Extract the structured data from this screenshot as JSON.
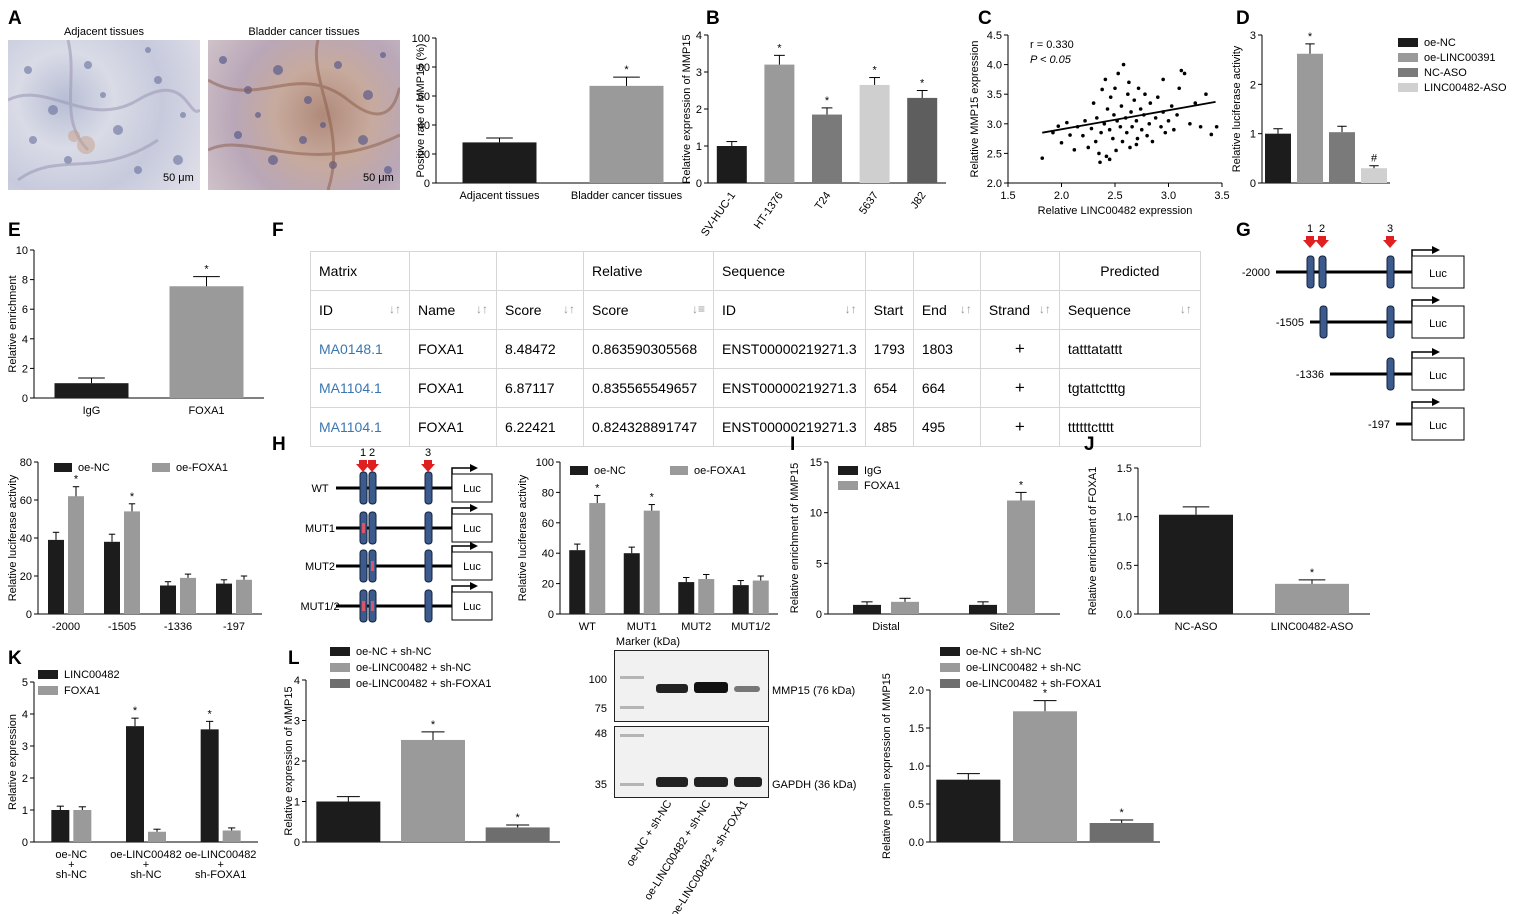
{
  "panel_labels": [
    "A",
    "B",
    "C",
    "D",
    "E",
    "F",
    "G",
    "H",
    "I",
    "J",
    "K",
    "L"
  ],
  "panelA": {
    "image_titles": [
      "Adjacent tissues",
      "Bladder cancer tissues"
    ],
    "scale_bar": "50 μm"
  },
  "panelF": {
    "header1": [
      "Matrix",
      "",
      "",
      "Relative",
      "Sequence",
      "",
      "",
      "",
      "Predicted"
    ],
    "header2": [
      "ID",
      "Name",
      "Score",
      "Score",
      "ID",
      "Start",
      "End",
      "Strand",
      "Sequence"
    ],
    "rows": [
      [
        "MA0148.1",
        "FOXA1",
        "8.48472",
        "0.863590305568",
        "ENST00000219271.3",
        "1793",
        "1803",
        "+",
        "tatttatattt"
      ],
      [
        "MA1104.1",
        "FOXA1",
        "6.87117",
        "0.835565549657",
        "ENST00000219271.3",
        "654",
        "664",
        "+",
        "tgtattctttg"
      ],
      [
        "MA1104.1",
        "FOXA1",
        "6.22421",
        "0.824328891747",
        "ENST00000219271.3",
        "485",
        "495",
        "+",
        "ttttttctttt"
      ]
    ]
  },
  "panelG": {
    "site_numbers": [
      "1",
      "2",
      "3"
    ],
    "constructs": [
      "-2000",
      "-1505",
      "-1336",
      "-197"
    ],
    "reporter": "Luc"
  },
  "panelH_diagram": {
    "site_numbers": [
      "1",
      "2",
      "3"
    ],
    "constructs": [
      "WT",
      "MUT1",
      "MUT2",
      "MUT1/2"
    ],
    "reporter": "Luc"
  },
  "westernL": {
    "marker_title": "Marker (kDa)",
    "upper_markers": [
      "100",
      "75"
    ],
    "lower_markers": [
      "48",
      "35"
    ],
    "bands": [
      "MMP15 (76 kDa)",
      "GAPDH (36 kDa)"
    ],
    "lanes": [
      "oe-NC + sh-NC",
      "oe-LINC00482 + sh-NC",
      "oe-LINC00482 + sh-FOXA1"
    ]
  },
  "chart_data": [
    {
      "panel": "A",
      "type": "bar",
      "categories": [
        "Adjacent tissues",
        "Bladder cancer tissues"
      ],
      "values": [
        28,
        67
      ],
      "errors": [
        3,
        6
      ],
      "ylabel": "Positive rate of MMP15 (%)",
      "ylim": [
        0,
        100
      ],
      "yticks": [
        0,
        20,
        40,
        60,
        80,
        100
      ],
      "significance": [
        "",
        "*"
      ],
      "colors": [
        "#1c1c1c",
        "#9a9a9a"
      ]
    },
    {
      "panel": "B",
      "type": "bar",
      "categories": [
        "SV-HUC-1",
        "HT-1376",
        "T24",
        "5637",
        "J82"
      ],
      "values": [
        1.0,
        3.2,
        1.85,
        2.65,
        2.3
      ],
      "errors": [
        0.12,
        0.25,
        0.18,
        0.2,
        0.2
      ],
      "ylabel": "Relative expression of MMP15",
      "ylim": [
        0,
        4
      ],
      "yticks": [
        0,
        1,
        2,
        3,
        4
      ],
      "significance": [
        "",
        "*",
        "*",
        "*",
        "*"
      ],
      "colors": [
        "#1c1c1c",
        "#9a9a9a",
        "#7a7a7a",
        "#cfcfcf",
        "#5e5e5e"
      ]
    },
    {
      "panel": "C",
      "type": "scatter",
      "xlabel": "Relative LINC00482 expression",
      "ylabel": "Relative MMP15 expression",
      "xlim": [
        1.5,
        3.5
      ],
      "ylim": [
        2.0,
        4.5
      ],
      "xticks": [
        1.5,
        2.0,
        2.5,
        3.0,
        3.5
      ],
      "yticks": [
        2.0,
        2.5,
        3.0,
        3.5,
        4.0,
        4.5
      ],
      "annotations": [
        "r = 0.330",
        "P < 0.05"
      ],
      "regression": [
        [
          1.82,
          2.85
        ],
        [
          3.44,
          3.37
        ]
      ],
      "points": [
        [
          1.82,
          2.42
        ],
        [
          1.92,
          2.85
        ],
        [
          1.97,
          2.96
        ],
        [
          2.0,
          2.68
        ],
        [
          2.05,
          3.02
        ],
        [
          2.08,
          2.81
        ],
        [
          2.12,
          2.56
        ],
        [
          2.15,
          2.95
        ],
        [
          2.2,
          2.8
        ],
        [
          2.22,
          3.05
        ],
        [
          2.25,
          2.6
        ],
        [
          2.28,
          2.92
        ],
        [
          2.3,
          3.35
        ],
        [
          2.32,
          2.7
        ],
        [
          2.33,
          3.1
        ],
        [
          2.35,
          2.5
        ],
        [
          2.37,
          2.85
        ],
        [
          2.38,
          3.58
        ],
        [
          2.4,
          3.0
        ],
        [
          2.41,
          3.75
        ],
        [
          2.42,
          2.45
        ],
        [
          2.43,
          3.25
        ],
        [
          2.45,
          2.9
        ],
        [
          2.46,
          3.45
        ],
        [
          2.48,
          2.75
        ],
        [
          2.49,
          3.15
        ],
        [
          2.5,
          3.6
        ],
        [
          2.51,
          2.55
        ],
        [
          2.52,
          3.05
        ],
        [
          2.53,
          3.85
        ],
        [
          2.55,
          2.95
        ],
        [
          2.56,
          3.3
        ],
        [
          2.57,
          2.7
        ],
        [
          2.58,
          4.0
        ],
        [
          2.6,
          3.1
        ],
        [
          2.61,
          2.85
        ],
        [
          2.62,
          3.5
        ],
        [
          2.63,
          3.7
        ],
        [
          2.64,
          2.6
        ],
        [
          2.65,
          3.2
        ],
        [
          2.66,
          2.95
        ],
        [
          2.68,
          3.4
        ],
        [
          2.7,
          3.05
        ],
        [
          2.71,
          2.75
        ],
        [
          2.72,
          3.6
        ],
        [
          2.74,
          3.25
        ],
        [
          2.75,
          2.9
        ],
        [
          2.77,
          3.15
        ],
        [
          2.78,
          3.5
        ],
        [
          2.8,
          2.8
        ],
        [
          2.82,
          3.0
        ],
        [
          2.83,
          3.35
        ],
        [
          2.85,
          2.7
        ],
        [
          2.88,
          3.1
        ],
        [
          2.9,
          3.45
        ],
        [
          2.93,
          2.95
        ],
        [
          2.95,
          3.2
        ],
        [
          2.97,
          2.85
        ],
        [
          3.0,
          3.05
        ],
        [
          3.03,
          3.3
        ],
        [
          3.05,
          2.9
        ],
        [
          3.08,
          3.15
        ],
        [
          3.1,
          3.6
        ],
        [
          3.15,
          3.85
        ],
        [
          3.2,
          3.0
        ],
        [
          3.25,
          3.35
        ],
        [
          3.3,
          2.95
        ],
        [
          3.35,
          3.5
        ],
        [
          3.4,
          2.82
        ],
        [
          3.45,
          2.95
        ],
        [
          2.36,
          2.35
        ],
        [
          2.7,
          2.65
        ],
        [
          2.95,
          3.75
        ],
        [
          2.45,
          2.4
        ],
        [
          3.12,
          3.9
        ]
      ]
    },
    {
      "panel": "D",
      "type": "bar",
      "categories": [
        "oe-NC",
        "oe-LINC00391",
        "NC-ASO",
        "LINC00482-ASO"
      ],
      "values": [
        1.0,
        2.62,
        1.03,
        0.3
      ],
      "errors": [
        0.1,
        0.2,
        0.12,
        0.05
      ],
      "ylabel": "Relative luciferase activity",
      "ylim": [
        0,
        3
      ],
      "yticks": [
        0,
        1,
        2,
        3
      ],
      "significance": [
        "",
        "*",
        "",
        "#"
      ],
      "legend": [
        "oe-NC",
        "oe-LINC00391",
        "NC-ASO",
        "LINC00482-ASO"
      ],
      "colors": [
        "#1c1c1c",
        "#9a9a9a",
        "#7a7a7a",
        "#d0d0d0"
      ]
    },
    {
      "panel": "E",
      "type": "bar",
      "categories": [
        "IgG",
        "FOXA1"
      ],
      "values": [
        1.0,
        7.55
      ],
      "errors": [
        0.35,
        0.65
      ],
      "ylabel": "Relative enrichment",
      "ylim": [
        0,
        10
      ],
      "yticks": [
        0,
        2,
        4,
        6,
        8,
        10
      ],
      "significance": [
        "",
        "*"
      ],
      "colors": [
        "#1c1c1c",
        "#9a9a9a"
      ]
    },
    {
      "panel": "G",
      "type": "bar",
      "categories": [
        "-2000",
        "-1505",
        "-1336",
        "-197"
      ],
      "series": [
        {
          "name": "oe-NC",
          "values": [
            39,
            38,
            15,
            16
          ],
          "errors": [
            4,
            4,
            2,
            2
          ]
        },
        {
          "name": "oe-FOXA1",
          "values": [
            62,
            54,
            19,
            18
          ],
          "errors": [
            5,
            4,
            2,
            2
          ]
        }
      ],
      "ylabel": "Relative luciferase activity",
      "ylim": [
        0,
        80
      ],
      "yticks": [
        0,
        20,
        40,
        60,
        80
      ],
      "significance": [
        [
          "",
          ""
        ],
        [
          "",
          ""
        ],
        [
          "",
          ""
        ],
        [
          "",
          ""
        ]
      ],
      "sig2": [
        "*",
        "*",
        "",
        ""
      ],
      "colors": [
        "#1c1c1c",
        "#9a9a9a"
      ]
    },
    {
      "panel": "H",
      "type": "bar",
      "categories": [
        "WT",
        "MUT1",
        "MUT2",
        "MUT1/2"
      ],
      "series": [
        {
          "name": "oe-NC",
          "values": [
            42,
            40,
            21,
            19
          ],
          "errors": [
            4,
            4,
            3,
            3
          ]
        },
        {
          "name": "oe-FOXA1",
          "values": [
            73,
            68,
            23,
            22
          ],
          "errors": [
            5,
            4,
            3,
            3
          ]
        }
      ],
      "ylabel": "Relative luciferase activity",
      "ylim": [
        0,
        100
      ],
      "yticks": [
        0,
        20,
        40,
        60,
        80,
        100
      ],
      "sig2": [
        "*",
        "*",
        "",
        ""
      ],
      "colors": [
        "#1c1c1c",
        "#9a9a9a"
      ]
    },
    {
      "panel": "I",
      "type": "bar",
      "categories": [
        "Distal",
        "Site2"
      ],
      "series": [
        {
          "name": "IgG",
          "values": [
            0.9,
            0.9
          ],
          "errors": [
            0.3,
            0.3
          ]
        },
        {
          "name": "FOXA1",
          "values": [
            1.2,
            11.2
          ],
          "errors": [
            0.35,
            0.8
          ]
        }
      ],
      "ylabel": "Relative enrichment of MMP15",
      "ylim": [
        0,
        15
      ],
      "yticks": [
        0,
        5,
        10,
        15
      ],
      "sig2": [
        "",
        "*"
      ],
      "colors": [
        "#1c1c1c",
        "#9a9a9a"
      ]
    },
    {
      "panel": "J",
      "type": "bar",
      "categories": [
        "NC-ASO",
        "LINC00482-ASO"
      ],
      "values": [
        1.02,
        0.31
      ],
      "errors": [
        0.08,
        0.04
      ],
      "ylabel": "Relative enrichment of FOXA1",
      "ylim": [
        0,
        1.5
      ],
      "yticks": [
        0.0,
        0.5,
        1.0,
        1.5
      ],
      "significance": [
        "",
        "*"
      ],
      "colors": [
        "#1c1c1c",
        "#9a9a9a"
      ]
    },
    {
      "panel": "K",
      "type": "bar",
      "categories": [
        "oe-NC + sh-NC",
        "oe-LINC00482 + sh-NC",
        "oe-LINC00482 + sh-FOXA1"
      ],
      "series": [
        {
          "name": "LINC00482",
          "values": [
            1.0,
            3.62,
            3.52
          ],
          "errors": [
            0.12,
            0.25,
            0.25
          ]
        },
        {
          "name": "FOXA1",
          "values": [
            1.0,
            0.32,
            0.36
          ],
          "errors": [
            0.1,
            0.08,
            0.08
          ]
        }
      ],
      "ylabel": "Relative expression",
      "ylim": [
        0,
        5
      ],
      "yticks": [
        0,
        1,
        2,
        3,
        4,
        5
      ],
      "sig1": [
        "",
        "*",
        "*"
      ],
      "colors": [
        "#1c1c1c",
        "#9a9a9a"
      ]
    },
    {
      "panel": "L1",
      "type": "bar",
      "categories": [
        "oe-NC + sh-NC",
        "oe-LINC00482 + sh-NC",
        "oe-LINC00482 + sh-FOXA1"
      ],
      "values": [
        1.0,
        2.52,
        0.36
      ],
      "errors": [
        0.12,
        0.2,
        0.06
      ],
      "ylabel": "Relative expression of MMP15",
      "ylim": [
        0,
        4
      ],
      "yticks": [
        0,
        1,
        2,
        3,
        4
      ],
      "significance": [
        "",
        "*",
        "*"
      ],
      "legend": [
        "oe-NC + sh-NC",
        "oe-LINC00482 + sh-NC",
        "oe-LINC00482 + sh-FOXA1"
      ],
      "colors": [
        "#1c1c1c",
        "#9a9a9a",
        "#6e6e6e"
      ]
    },
    {
      "panel": "L2",
      "type": "bar",
      "categories": [
        "oe-NC + sh-NC",
        "oe-LINC00482 + sh-NC",
        "oe-LINC00482 + sh-FOXA1"
      ],
      "values": [
        0.82,
        1.72,
        0.25
      ],
      "errors": [
        0.08,
        0.14,
        0.04
      ],
      "ylabel": "Relative protein expression of MMP15",
      "ylim": [
        0,
        2.0
      ],
      "yticks": [
        0.0,
        0.5,
        1.0,
        1.5,
        2.0
      ],
      "significance": [
        "",
        "*",
        "*"
      ],
      "legend": [
        "oe-NC + sh-NC",
        "oe-LINC00482 + sh-NC",
        "oe-LINC00482 + sh-FOXA1"
      ],
      "colors": [
        "#1c1c1c",
        "#9a9a9a",
        "#6e6e6e"
      ]
    }
  ]
}
